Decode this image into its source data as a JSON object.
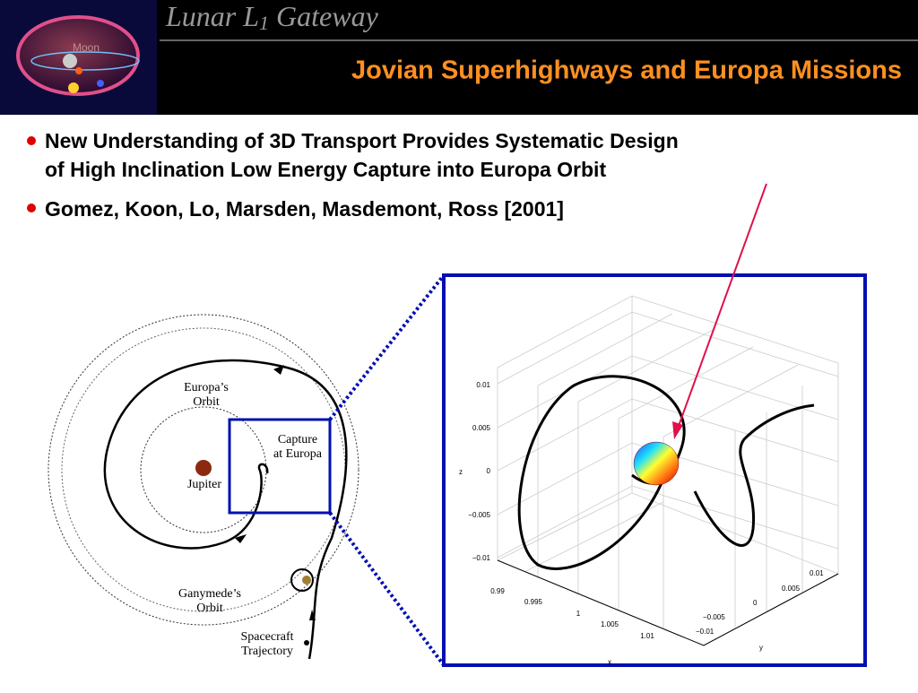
{
  "header": {
    "logo_label": "Moon",
    "title_parts": [
      "Lunar L",
      "1",
      " Gateway"
    ],
    "slide_title": "Jovian Superhighways and Europa Missions"
  },
  "bullets": [
    "New Understanding of 3D Transport Provides Systematic Design",
    "of High Inclination Low Energy Capture into Europa Orbit",
    "Gomez, Koon, Lo, Marsden, Masdemont, Ross [2001]"
  ],
  "diagram": {
    "labels": [
      "Europa’s",
      "Orbit",
      "Capture",
      "at Europa",
      "Jupiter",
      "Ganymede’s",
      "Orbit",
      "Spacecraft",
      "Trajectory"
    ]
  },
  "plot": {
    "z_label": "z",
    "y_label": "y",
    "x_label": "x",
    "z_ticks": [
      "0.01",
      "0.005",
      "0",
      "−0.005",
      "−0.01"
    ],
    "x_ticks": [
      "0.99",
      "0.995",
      "1",
      "1.005",
      "1.01"
    ],
    "y_ticks": [
      "0.01",
      "0.005",
      "0",
      "−0.005",
      "−0.01"
    ]
  }
}
